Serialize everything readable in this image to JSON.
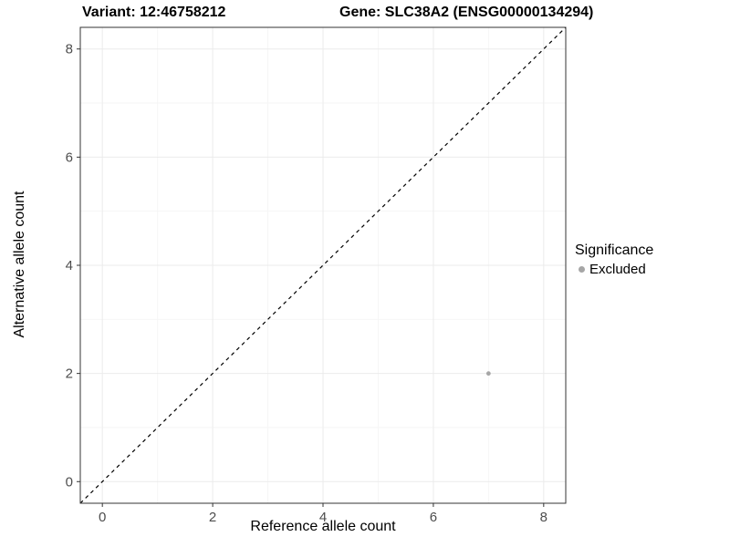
{
  "titles": {
    "left": "Variant: 12:46758212",
    "right": "Gene: SLC38A2 (ENSG00000134294)"
  },
  "chart_data": {
    "type": "scatter",
    "title": "Variant: 12:46758212 — Gene: SLC38A2 (ENSG00000134294)",
    "xlabel": "Reference allele count",
    "ylabel": "Alternative allele count",
    "xlim": [
      -0.4,
      8.4
    ],
    "ylim": [
      -0.4,
      8.4
    ],
    "xticks": [
      0,
      2,
      4,
      6,
      8
    ],
    "yticks": [
      0,
      2,
      4,
      6,
      8
    ],
    "xticks_minor": [
      1,
      3,
      5,
      7
    ],
    "yticks_minor": [
      1,
      3,
      5,
      7
    ],
    "grid": true,
    "reference_line": {
      "type": "diagonal",
      "equation": "y = x",
      "style": "dashed",
      "color": "#000000",
      "from": [
        -0.4,
        -0.4
      ],
      "to": [
        8.4,
        8.4
      ]
    },
    "series": [
      {
        "name": "Excluded",
        "color": "#a6a6a6",
        "points": [
          {
            "x": 7,
            "y": 2
          }
        ]
      }
    ],
    "legend": {
      "title": "Significance",
      "position": "right",
      "entries": [
        {
          "label": "Excluded",
          "color": "#a6a6a6"
        }
      ]
    },
    "colors": {
      "panel_bg": "#ffffff",
      "grid_major": "#ebebeb",
      "grid_minor": "#f6f6f6",
      "panel_border": "#333333",
      "tick": "#333333",
      "tick_label": "#4d4d4d"
    }
  }
}
